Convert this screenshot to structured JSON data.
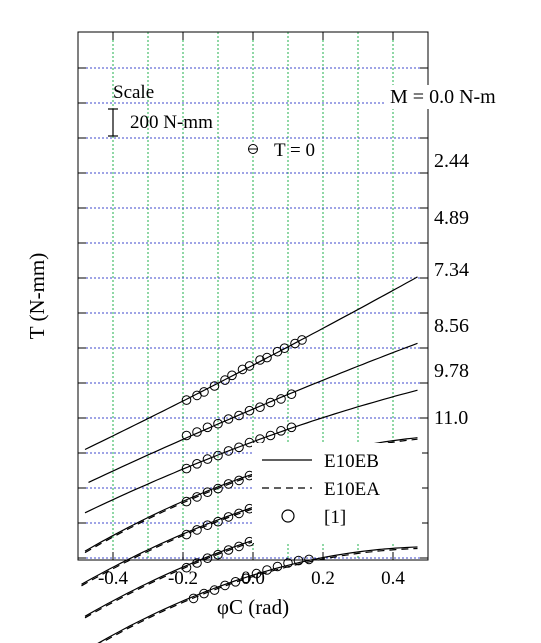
{
  "chart_data": {
    "type": "line",
    "title": "",
    "xlabel": "φC (rad)",
    "ylabel": "T (N-mm)",
    "xlim": [
      -0.5,
      0.5
    ],
    "x_ticks": [
      -0.4,
      -0.2,
      0.0,
      0.2,
      0.4
    ],
    "x_tick_labels": [
      "-0.4",
      "-0.2",
      "0.0",
      "0.2",
      "0.4"
    ],
    "grid": {
      "vertical": "green dotted every 0.1 rad",
      "horizontal": "blue dotted"
    },
    "scale_bar": {
      "title": "Scale",
      "label": "200 N-mm"
    },
    "zero_marker": {
      "label": "T = 0"
    },
    "legend": {
      "placement": "bottom-right",
      "entries": [
        {
          "label": "E10EB",
          "style": "solid"
        },
        {
          "label": "E10EA",
          "style": "dashed"
        },
        {
          "label": "[1]",
          "style": "circle"
        }
      ]
    },
    "series": [
      {
        "moment_label": "M = 0.0 N-m",
        "curve_x": [
          -0.48,
          0.47
        ],
        "curve_y": [
          -0.25,
          1.2
        ],
        "points_x": [
          -0.19,
          -0.16,
          -0.14,
          -0.11,
          -0.08,
          -0.06,
          -0.03,
          -0.01,
          0.02,
          0.04,
          0.07,
          0.09,
          0.12,
          0.14
        ],
        "points_y": [
          0.16,
          0.2,
          0.23,
          0.28,
          0.33,
          0.37,
          0.42,
          0.45,
          0.5,
          0.52,
          0.57,
          0.6,
          0.64,
          0.67
        ]
      },
      {
        "moment_label": "2.44",
        "curve_x": [
          -0.47,
          0.47
        ],
        "curve_y": [
          -0.55,
          0.65
        ],
        "points_x": [
          -0.19,
          -0.16,
          -0.13,
          -0.1,
          -0.07,
          -0.04,
          -0.01,
          0.02,
          0.05,
          0.08,
          0.11
        ],
        "points_y": [
          -0.14,
          -0.11,
          -0.07,
          -0.04,
          0.0,
          0.03,
          0.07,
          0.1,
          0.14,
          0.17,
          0.21
        ]
      },
      {
        "moment_label": "4.89",
        "curve_x": [
          -0.48,
          0.47
        ],
        "curve_y": [
          -0.79,
          0.24
        ],
        "points_x": [
          -0.19,
          -0.16,
          -0.13,
          -0.1,
          -0.07,
          -0.04,
          -0.01,
          0.02,
          0.05,
          0.08,
          0.11
        ],
        "points_y": [
          -0.42,
          -0.38,
          -0.34,
          -0.31,
          -0.27,
          -0.24,
          -0.2,
          -0.17,
          -0.14,
          -0.1,
          -0.07
        ]
      },
      {
        "moment_label": "7.34",
        "curve_x": [
          -0.48,
          0.47
        ],
        "curve_y": [
          -1.1,
          -0.18
        ],
        "points_x": [
          -0.19,
          -0.16,
          -0.13,
          -0.1,
          -0.07,
          -0.04,
          -0.01,
          0.02,
          0.05,
          0.08,
          0.11,
          0.14,
          0.17
        ],
        "points_y": [
          -0.7,
          -0.66,
          -0.62,
          -0.59,
          -0.55,
          -0.52,
          -0.48,
          -0.45,
          -0.41,
          -0.38,
          -0.35,
          -0.32,
          -0.29
        ]
      },
      {
        "moment_label": "8.56",
        "curve_x": [
          -0.49,
          0.47
        ],
        "curve_y": [
          -1.38,
          -0.46
        ],
        "points_x": [
          -0.19,
          -0.16,
          -0.13,
          -0.1,
          -0.07,
          -0.04,
          -0.01,
          0.02,
          0.05,
          0.08,
          0.11,
          0.14,
          0.17,
          0.19
        ],
        "points_y": [
          -0.98,
          -0.94,
          -0.9,
          -0.87,
          -0.83,
          -0.8,
          -0.76,
          -0.73,
          -0.7,
          -0.66,
          -0.63,
          -0.61,
          -0.58,
          -0.57
        ]
      },
      {
        "moment_label": "9.78",
        "curve_x": [
          -0.48,
          0.47
        ],
        "curve_y": [
          -1.65,
          -0.76
        ],
        "points_x": [
          -0.19,
          -0.16,
          -0.13,
          -0.1,
          -0.07,
          -0.04,
          -0.01,
          0.02,
          0.05,
          0.08,
          0.11,
          0.14,
          0.17,
          0.19
        ],
        "points_y": [
          -1.26,
          -1.22,
          -1.18,
          -1.15,
          -1.11,
          -1.08,
          -1.04,
          -1.01,
          -0.98,
          -0.94,
          -0.91,
          -0.89,
          -0.86,
          -0.86
        ]
      },
      {
        "moment_label": "11.0",
        "curve_x": [
          -0.48,
          0.47
        ],
        "curve_y": [
          -1.95,
          -1.1
        ],
        "points_x": [
          -0.17,
          -0.14,
          -0.11,
          -0.08,
          -0.05,
          -0.02,
          0.01,
          0.04,
          0.07,
          0.1,
          0.13,
          0.16
        ],
        "points_y": [
          -1.52,
          -1.48,
          -1.45,
          -1.41,
          -1.38,
          -1.35,
          -1.31,
          -1.28,
          -1.25,
          -1.22,
          -1.2,
          -1.19
        ]
      }
    ]
  }
}
